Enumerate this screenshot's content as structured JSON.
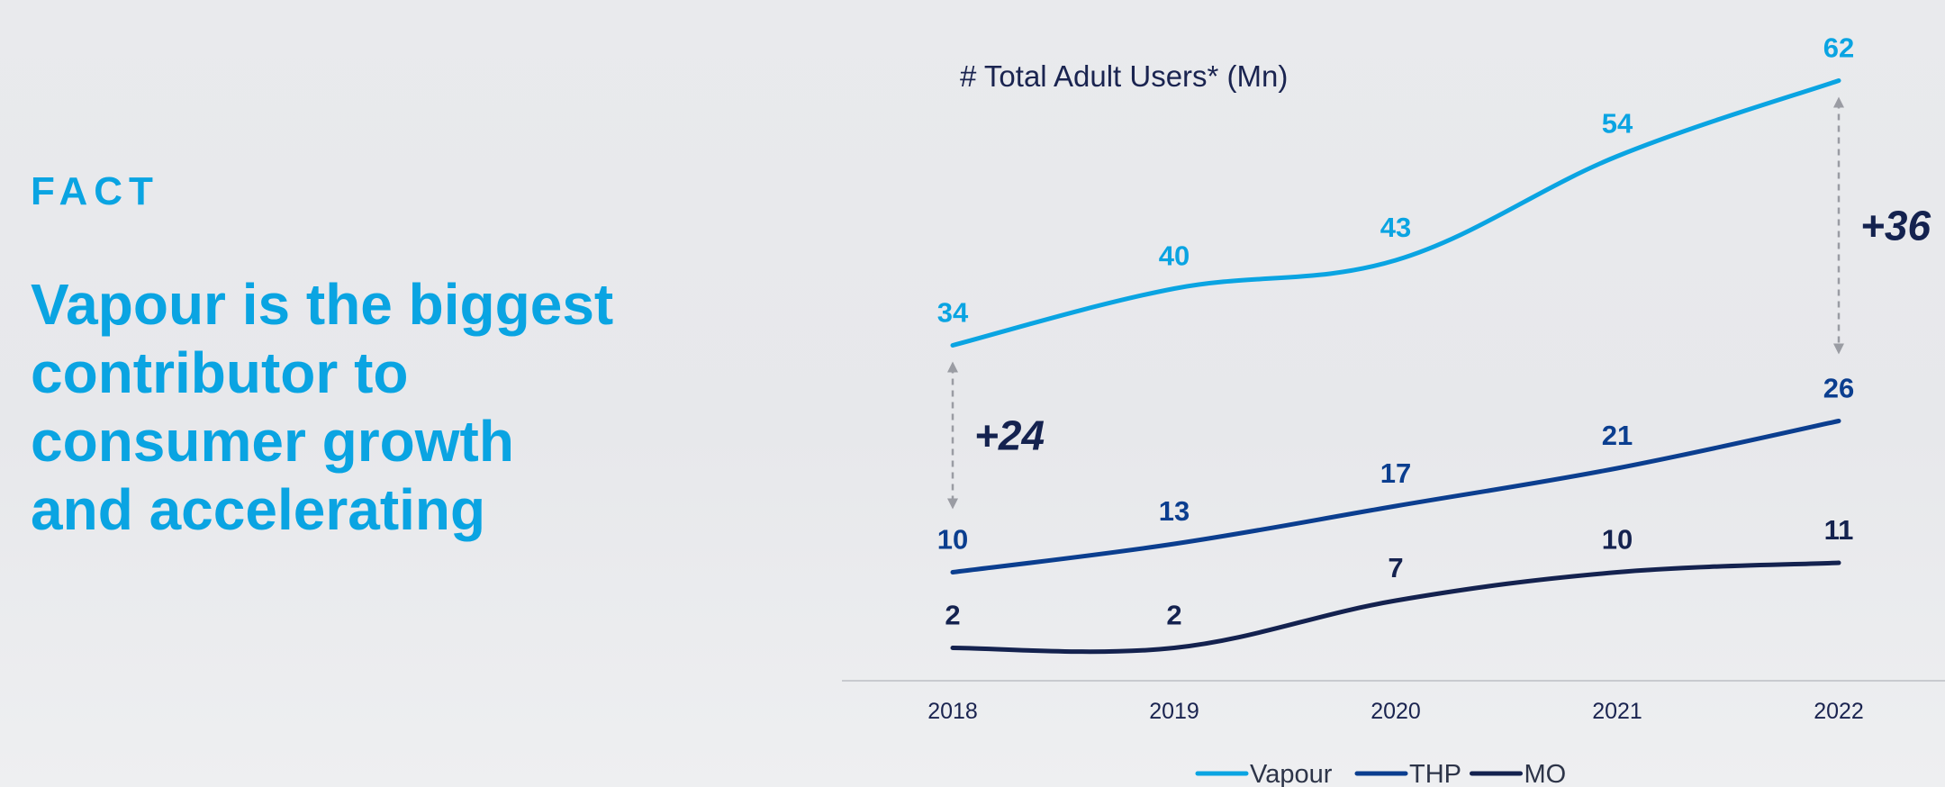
{
  "left_panel": {
    "kicker": "FACT",
    "headline_lines": [
      "Vapour is the biggest",
      "contributor to",
      "consumer growth",
      "and accelerating"
    ]
  },
  "chart_data": {
    "type": "line",
    "title": "# Total Adult Users* (Mn)",
    "xlabel": "",
    "ylabel": "",
    "x": [
      "2018",
      "2019",
      "2020",
      "2021",
      "2022"
    ],
    "series": [
      {
        "name": "Vapour",
        "values": [
          34,
          40,
          43,
          54,
          62
        ],
        "color": "#0aa4e2"
      },
      {
        "name": "THP",
        "values": [
          10,
          13,
          17,
          21,
          26
        ],
        "color": "#0b3e8f"
      },
      {
        "name": "MO",
        "values": [
          2,
          2,
          7,
          10,
          11
        ],
        "color": "#14224f"
      }
    ],
    "grid": false,
    "legend": "bottom-center",
    "annotations": [
      {
        "text": "+24",
        "year": "2018",
        "from": "THP",
        "to": "Vapour"
      },
      {
        "text": "+36",
        "year": "2022",
        "from": "THP",
        "to": "Vapour"
      }
    ],
    "arrow_color": "#9a9ca3",
    "axis_color": "#c8cacf"
  }
}
